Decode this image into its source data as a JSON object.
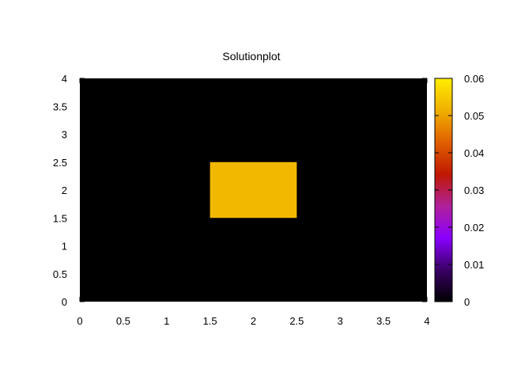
{
  "chart_data": {
    "type": "heatmap",
    "title": "Solutionplot",
    "xlabel": "",
    "ylabel": "",
    "xlim": [
      0,
      4
    ],
    "ylim": [
      0,
      4
    ],
    "x_ticks": [
      "0",
      "0.5",
      "1",
      "1.5",
      "2",
      "2.5",
      "3",
      "3.5",
      "4"
    ],
    "y_ticks": [
      "0",
      "0.5",
      "1",
      "1.5",
      "2",
      "2.5",
      "3",
      "3.5",
      "4"
    ],
    "background_value": 0,
    "cells": [
      {
        "x": [
          1.5,
          2.5
        ],
        "y": [
          1.5,
          2.5
        ],
        "value": 0.05
      }
    ],
    "colorbar": {
      "range": [
        0,
        0.06
      ],
      "ticks": [
        "0",
        "0.01",
        "0.02",
        "0.03",
        "0.04",
        "0.05",
        "0.06"
      ],
      "palette": [
        "#000000",
        "#3a0066",
        "#8a00ff",
        "#b0209a",
        "#c01800",
        "#e06000",
        "#f0b000",
        "#ffee00"
      ]
    },
    "colors": {
      "background": "#000000",
      "cell": "#f2b800"
    }
  }
}
